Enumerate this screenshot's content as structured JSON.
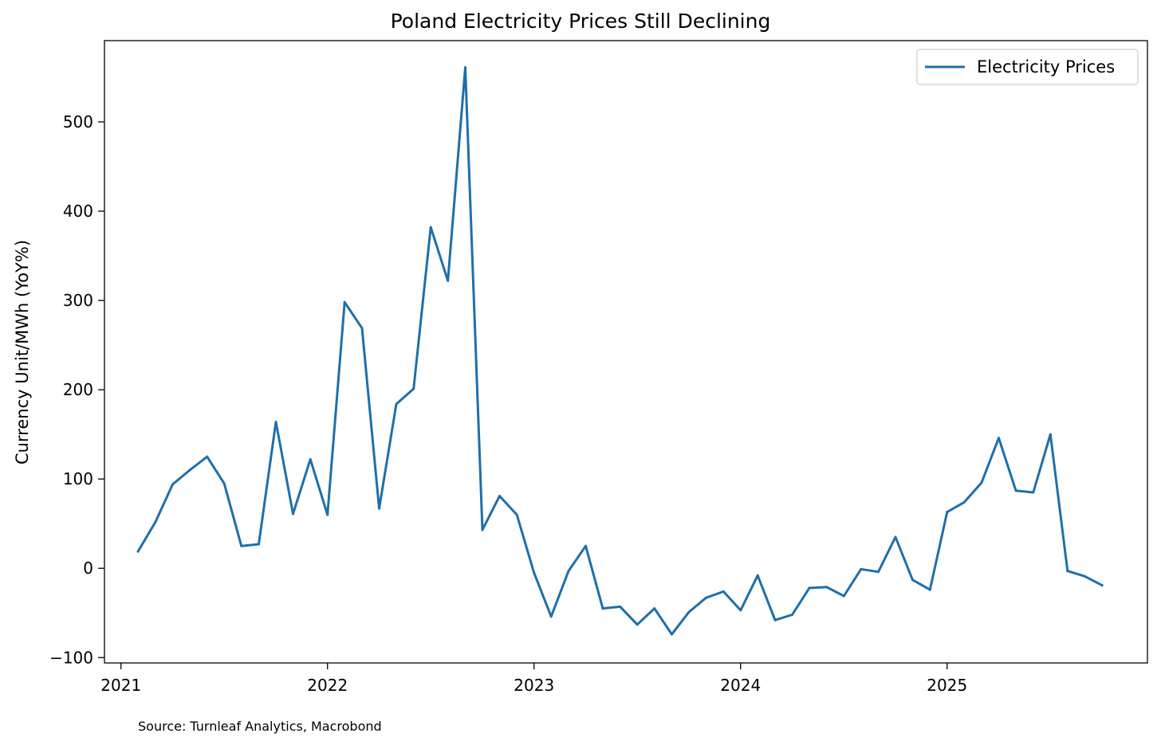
{
  "chart_data": {
    "type": "line",
    "title": "Poland Electricity Prices Still Declining",
    "xlabel": "",
    "ylabel": "Currency Unit/MWh (YoY%)",
    "source": "Source: Turnleaf Analytics, Macrobond",
    "xlim": [
      2020.92,
      2025.97
    ],
    "ylim": [
      -106,
      591
    ],
    "x_ticks": [
      2021,
      2022,
      2023,
      2024,
      2025
    ],
    "x_tick_labels": [
      "2021",
      "2022",
      "2023",
      "2024",
      "2025"
    ],
    "y_ticks": [
      -100,
      0,
      100,
      200,
      300,
      400,
      500
    ],
    "y_tick_labels": [
      "−100",
      "0",
      "100",
      "200",
      "300",
      "400",
      "500"
    ],
    "grid": false,
    "legend_position": "top-right",
    "line_color": "#1f6fa9",
    "series": [
      {
        "name": "Electricity Prices",
        "x": [
          2021.083,
          2021.167,
          2021.25,
          2021.333,
          2021.417,
          2021.5,
          2021.583,
          2021.667,
          2021.75,
          2021.833,
          2021.917,
          2022.0,
          2022.083,
          2022.167,
          2022.25,
          2022.333,
          2022.417,
          2022.5,
          2022.583,
          2022.667,
          2022.75,
          2022.833,
          2022.917,
          2023.0,
          2023.083,
          2023.167,
          2023.25,
          2023.333,
          2023.417,
          2023.5,
          2023.583,
          2023.667,
          2023.75,
          2023.833,
          2023.917,
          2024.0,
          2024.083,
          2024.167,
          2024.25,
          2024.333,
          2024.417,
          2024.5,
          2024.583,
          2024.667,
          2024.75,
          2024.833,
          2024.917,
          2025.0,
          2025.083,
          2025.167,
          2025.25,
          2025.333,
          2025.417,
          2025.5,
          2025.583,
          2025.667,
          2025.75
        ],
        "values": [
          19,
          52,
          94,
          110,
          125,
          95,
          25,
          27,
          164,
          61,
          122,
          60,
          298,
          269,
          67,
          184,
          201,
          382,
          322,
          561,
          43,
          81,
          60,
          -5,
          -54,
          -3,
          25,
          -45,
          -43,
          -63,
          -45,
          -74,
          -49,
          -33,
          -26,
          -47,
          -8,
          -58,
          -52,
          -22,
          -21,
          -31,
          -1,
          -4,
          35,
          -13,
          -24,
          63,
          74,
          96,
          146,
          87,
          85,
          150,
          -3,
          -9,
          -19
        ]
      }
    ]
  }
}
